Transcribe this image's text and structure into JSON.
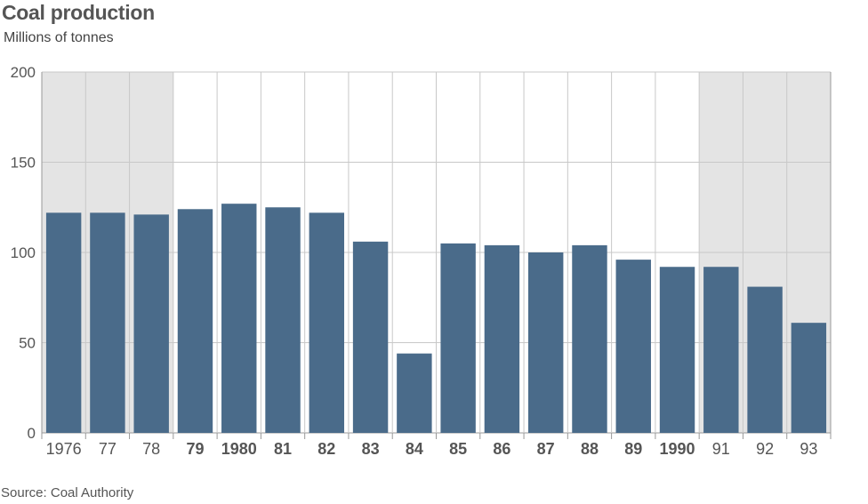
{
  "chart_data": {
    "type": "bar",
    "title": "Coal production",
    "subtitle": "Millions of tonnes",
    "source": "Source: Coal Authority",
    "ylim": [
      0,
      200
    ],
    "yticks": [
      "0",
      "50",
      "100",
      "150",
      "200"
    ],
    "grid": true,
    "categories": [
      "1976",
      "77",
      "78",
      "79",
      "1980",
      "81",
      "82",
      "83",
      "84",
      "85",
      "86",
      "87",
      "88",
      "89",
      "1990",
      "91",
      "92",
      "93"
    ],
    "values": [
      122,
      122,
      121,
      124,
      127,
      125,
      122,
      106,
      44,
      105,
      104,
      100,
      104,
      96,
      92,
      92,
      81,
      61
    ],
    "bold_categories": [
      "79",
      "1980",
      "81",
      "82",
      "83",
      "84",
      "85",
      "86",
      "87",
      "88",
      "89",
      "1990"
    ],
    "shaded_categories": [
      "1976",
      "77",
      "78",
      "91",
      "92",
      "93"
    ],
    "colors": {
      "bar": "#4a6b8a",
      "shaded_background": "#e4e4e4",
      "grid": "#c8c8c8",
      "axis": "#999999"
    }
  }
}
